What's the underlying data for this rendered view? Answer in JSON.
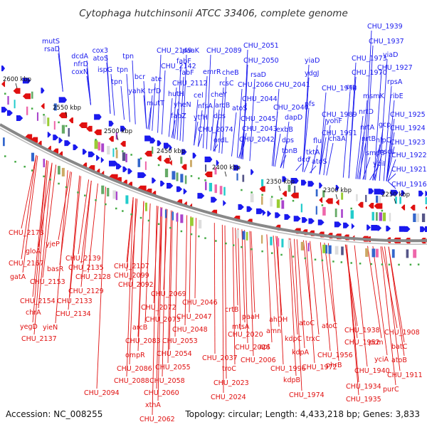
{
  "title": "Cytophaga hutchinsonii ATCC 33406, complete genome",
  "footer": {
    "accession": "Accession: NC_008255",
    "stats": "Topology: circular; Length: 4,433,218 bp; Genes: 3,833"
  },
  "colors": {
    "forward_strand": "#1a1aee",
    "reverse_strand": "#e01010",
    "backbone": "#888888",
    "cog_palette": [
      "#22cccc",
      "#aa44cc",
      "#ee66aa",
      "#99cc33",
      "#555588",
      "#ccaa66",
      "#3366cc",
      "#66aa66",
      "#dddddd"
    ]
  },
  "ticks": [
    "2600 kbp",
    "2550 kbp",
    "2500 kbp",
    "2450 kbp",
    "2400 kbp",
    "2350 kbp",
    "2300 kbp",
    "2250 kbp"
  ],
  "forward_labels": [
    "mutS",
    "rsaD",
    "dcdA",
    "nfrD",
    "coxN",
    "cox3",
    "atoS",
    "ispG",
    "tpn",
    "tpn",
    "tpn",
    "bcr",
    "yahK",
    "CHU_2149",
    "CHU_2142",
    "ate",
    "trfD",
    "mutT",
    "paaK",
    "fabF",
    "fabF",
    "CHU_2112",
    "hutH",
    "yheN",
    "fabZ",
    "CHU_2089",
    "emrR",
    "rcsC",
    "cheB",
    "cel",
    "cheY",
    "nfsA",
    "arcB",
    "ytfH",
    "dps",
    "CHU_2074",
    "ordL",
    "CHU_2051",
    "CHU_2050",
    "rsaD",
    "CHU_2066",
    "CHU_2044",
    "atoS",
    "CHU_2045",
    "CHU_2043",
    "CHU_2042",
    "CHU_2041",
    "CHU_2040",
    "dapD",
    "exbB",
    "dps",
    "tonB",
    "dcd",
    "yiaD",
    "ydgJ",
    "pfs",
    "CHU_1994",
    "CHU_1989",
    "CHU_1991",
    "atoS",
    "yohF",
    "chaA",
    "flu",
    "tktA",
    "CHU_1973",
    "CHU_1970",
    "crp",
    "msmK",
    "nrtD",
    "nrtA",
    "nrtB",
    "smpB",
    "gcp",
    "nlpC",
    "mscL",
    "ybiI",
    "CHU_1939",
    "CHU_1937",
    "yiaD",
    "CHU_1927",
    "rpsA",
    "ribE",
    "CHU_1925",
    "CHU_1924",
    "CHU_1923",
    "CHU_1922",
    "CHU_1921",
    "CHU_1916"
  ],
  "reverse_labels": [
    "CHU_2178",
    "gloA",
    "yjeP",
    "CHU_2167",
    "basR",
    "CHU_2139",
    "CHU_2135",
    "CHU_2128",
    "gatA",
    "CHU_2153",
    "CHU_2129",
    "CHU_2154",
    "CHU_2133",
    "chrA",
    "CHU_2134",
    "yegD",
    "yieN",
    "CHU_2137",
    "CHU_2107",
    "CHU_2099",
    "CHU_2092",
    "arcB",
    "CHU_2069",
    "CHU_2072",
    "CHU_2073",
    "CHU_2046",
    "CHU_2047",
    "CHU_2048",
    "CHU_2083",
    "ompR",
    "CHU_2053",
    "CHU_2054",
    "CHU_2086",
    "CHU_2088",
    "CHU_2094",
    "CHU_2055",
    "CHU_2058",
    "CHU_2060",
    "xthA",
    "CHU_2062",
    "crtB",
    "paaH",
    "mtsA",
    "CHU_2020",
    "CHU_2026",
    "CHU_2037",
    "troC",
    "CHU_2023",
    "CHU_2024",
    "ahDH",
    "amn",
    "apt",
    "CHU_2006",
    "CHU_1996",
    "atoC",
    "kdpC",
    "trxC",
    "kdpA",
    "CHU_1972",
    "kdpB",
    "CHU_1974",
    "phrB",
    "atoC",
    "CHU_1956",
    "CHU_1952",
    "CHU_1938",
    "pcm",
    "yciA",
    "CHU_1940",
    "CHU_1934",
    "CHU_1935",
    "CHU_1908",
    "batC",
    "atoB",
    "CHU_1911",
    "purC"
  ]
}
